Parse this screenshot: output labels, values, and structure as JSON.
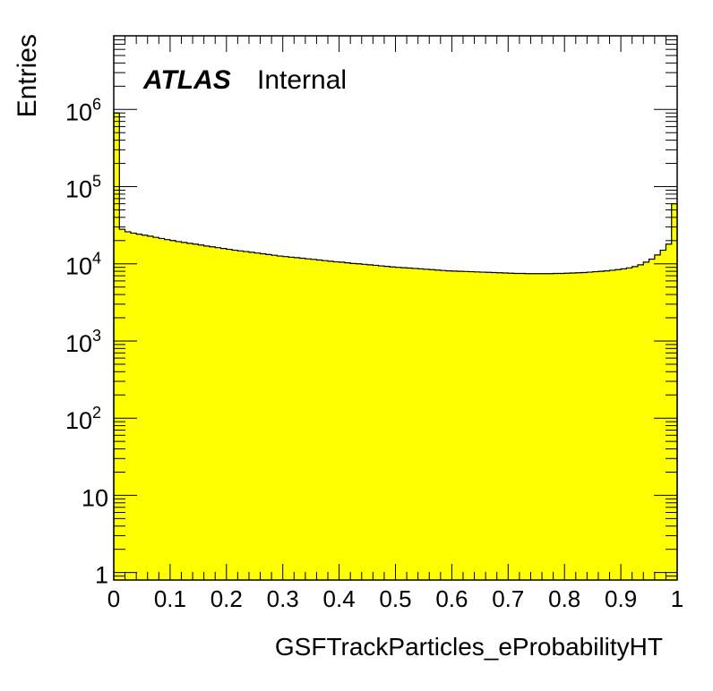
{
  "chart_data": {
    "type": "histogram",
    "title": "",
    "xlabel": "GSFTrackParticles_eProbabilityHT",
    "ylabel": "Entries",
    "xlim": [
      0,
      1
    ],
    "ylim": [
      0.8,
      9000000
    ],
    "yscale": "log",
    "x_tick_labels": [
      "0",
      "0.1",
      "0.2",
      "0.3",
      "0.4",
      "0.5",
      "0.6",
      "0.7",
      "0.8",
      "0.9",
      "1"
    ],
    "y_tick_labels": [
      {
        "base": "1",
        "exp": ""
      },
      {
        "base": "10",
        "exp": ""
      },
      {
        "base": "10",
        "exp": "2"
      },
      {
        "base": "10",
        "exp": "3"
      },
      {
        "base": "10",
        "exp": "4"
      },
      {
        "base": "10",
        "exp": "5"
      },
      {
        "base": "10",
        "exp": "6"
      }
    ],
    "bin_width": 0.01,
    "fill_color": "#ffff00",
    "line_color": "#000000",
    "values": [
      900000,
      28000,
      26000,
      25000,
      24200,
      23500,
      22800,
      22000,
      21300,
      20600,
      20000,
      19400,
      18900,
      18400,
      18000,
      17500,
      17000,
      16600,
      16200,
      15800,
      15400,
      15000,
      14700,
      14400,
      14100,
      13800,
      13500,
      13200,
      12900,
      12600,
      12400,
      12200,
      12000,
      11800,
      11600,
      11400,
      11200,
      11000,
      10800,
      10600,
      10500,
      10300,
      10100,
      10000,
      9850,
      9700,
      9550,
      9400,
      9250,
      9100,
      9000,
      8900,
      8800,
      8700,
      8600,
      8500,
      8400,
      8300,
      8200,
      8100,
      8050,
      8000,
      7950,
      7900,
      7850,
      7800,
      7750,
      7700,
      7650,
      7600,
      7550,
      7500,
      7500,
      7450,
      7450,
      7450,
      7450,
      7450,
      7500,
      7500,
      7550,
      7600,
      7650,
      7700,
      7800,
      7900,
      8000,
      8100,
      8250,
      8400,
      8600,
      8850,
      9200,
      9700,
      10500,
      11500,
      13000,
      15000,
      18000,
      60000
    ]
  },
  "labels": {
    "experiment": "ATLAS",
    "status": "Internal"
  }
}
